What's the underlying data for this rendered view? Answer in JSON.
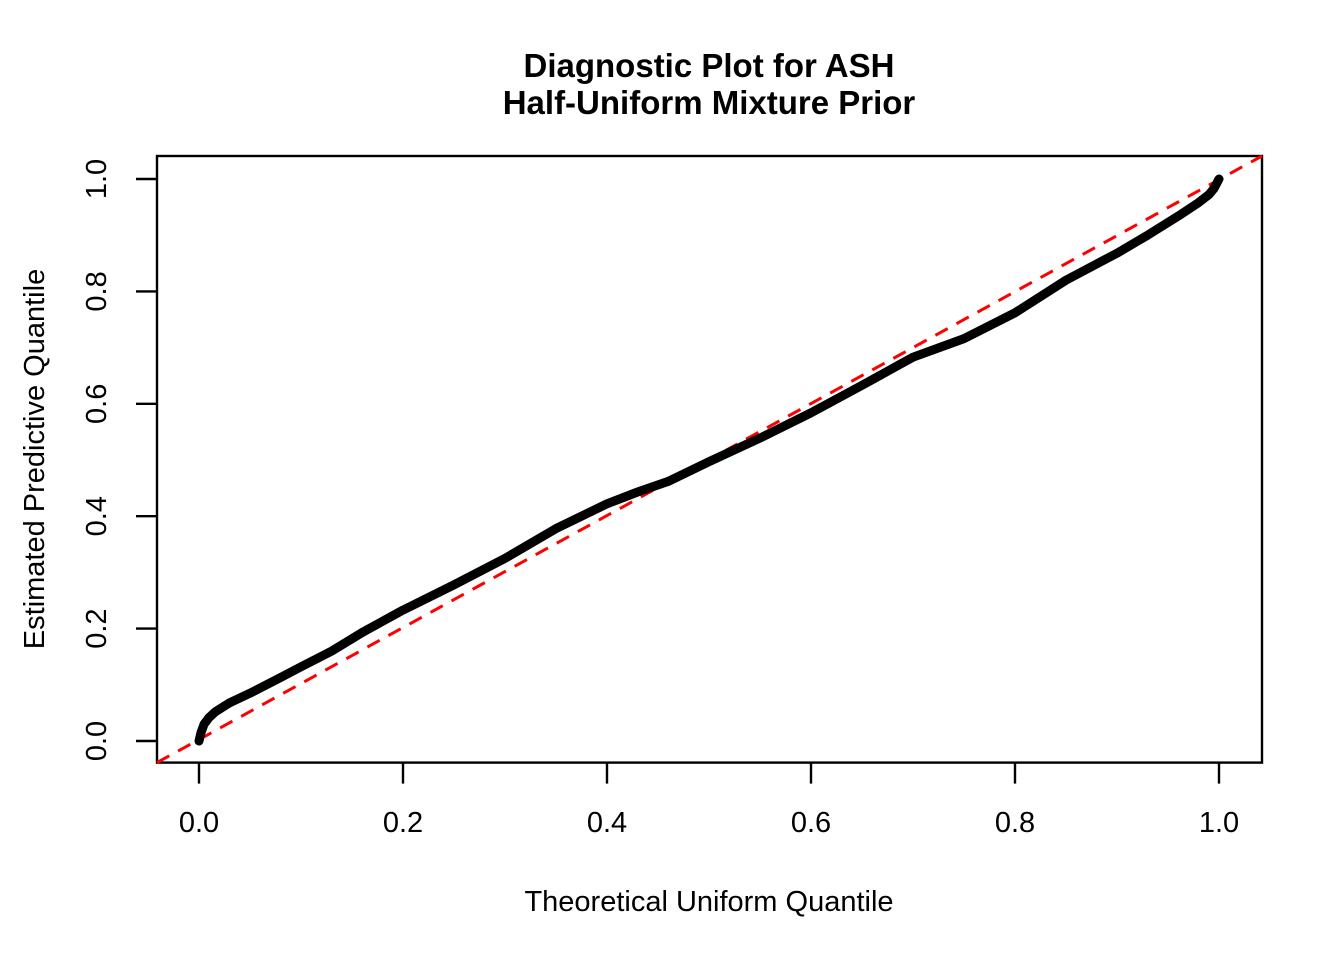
{
  "figure": {
    "background": "#ffffff"
  },
  "chart_data": {
    "type": "line",
    "title": "Diagnostic Plot for ASH\nHalf-Uniform Mixture Prior",
    "title_line1": "Diagnostic Plot for ASH",
    "title_line2": "Half-Uniform Mixture Prior",
    "xlabel": "Theoretical Uniform Quantile",
    "ylabel": "Estimated Predictive Quantile",
    "xlim": [
      0.0,
      1.0
    ],
    "ylim": [
      0.0,
      1.0
    ],
    "x_ticks": [
      0.0,
      0.2,
      0.4,
      0.6,
      0.8,
      1.0
    ],
    "y_ticks": [
      0.0,
      0.2,
      0.4,
      0.6,
      0.8,
      1.0
    ],
    "x_tick_labels": [
      "0.0",
      "0.2",
      "0.4",
      "0.6",
      "0.8",
      "1.0"
    ],
    "y_tick_labels": [
      "0.0",
      "0.2",
      "0.4",
      "0.6",
      "0.8",
      "1.0"
    ],
    "grid": false,
    "legend": "none",
    "axis_color": "#000000",
    "series": [
      {
        "name": "estimated-predictive-quantiles",
        "style": "thick-point-curve",
        "color": "#000000",
        "x": [
          0.0,
          0.002,
          0.005,
          0.01,
          0.016,
          0.03,
          0.05,
          0.08,
          0.1,
          0.13,
          0.16,
          0.2,
          0.25,
          0.3,
          0.35,
          0.4,
          0.43,
          0.46,
          0.5,
          0.55,
          0.6,
          0.65,
          0.7,
          0.75,
          0.8,
          0.85,
          0.9,
          0.93,
          0.96,
          0.98,
          0.99,
          0.995,
          1.0
        ],
        "y": [
          0.0,
          0.015,
          0.03,
          0.042,
          0.052,
          0.068,
          0.085,
          0.113,
          0.132,
          0.16,
          0.193,
          0.233,
          0.278,
          0.325,
          0.378,
          0.422,
          0.443,
          0.462,
          0.497,
          0.539,
          0.584,
          0.633,
          0.683,
          0.716,
          0.762,
          0.82,
          0.868,
          0.9,
          0.934,
          0.958,
          0.972,
          0.983,
          1.0
        ]
      },
      {
        "name": "identity-reference-line",
        "style": "dashed-line",
        "color": "#FF0000",
        "slope": 1,
        "intercept": 0,
        "x": [
          0.0,
          1.0
        ],
        "y": [
          0.0,
          1.0
        ]
      }
    ]
  }
}
